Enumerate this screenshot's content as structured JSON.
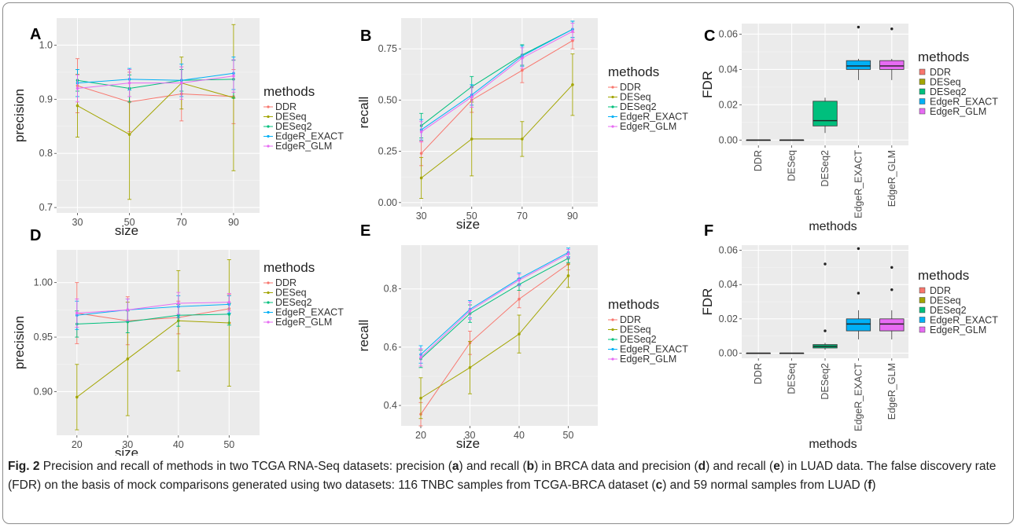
{
  "figure": {
    "caption_fig_label": "Fig. 2",
    "caption_parts": [
      " Precision and recall of methods in two TCGA RNA-Seq datasets: precision (",
      "a",
      ") and recall (",
      "b",
      ") in BRCA data and precision (",
      "d",
      ") and recall (",
      "e",
      ") in LUAD data. The false discovery rate (FDR) on the basis of mock comparisons generated using two datasets: 116 TNBC samples from TCGA-BRCA dataset (",
      "c",
      ") and 59 normal samples from LUAD (",
      "f",
      ")"
    ]
  },
  "colors": {
    "DDR": "#F8766D",
    "DESeq": "#A3A500",
    "DESeq2": "#00BF7D",
    "EdgeR_EXACT": "#00B0F6",
    "EdgeR_GLM": "#E76BF3",
    "panel_bg": "#EBEBEB",
    "grid": "#FFFFFF"
  },
  "chart_data": [
    {
      "panel": "A",
      "type": "line",
      "xlabel": "size",
      "ylabel": "precision",
      "x": [
        30,
        50,
        70,
        90
      ],
      "xlim": [
        22,
        100
      ],
      "ylim": [
        0.69,
        1.05
      ],
      "xticks": [
        "30",
        "50",
        "70",
        "90"
      ],
      "yticks": [
        0.7,
        0.8,
        0.9,
        1.0
      ],
      "ytick_labels": [
        "0.7",
        "0.8",
        "0.9",
        "1.0"
      ],
      "legend_title": "methods",
      "legend_position": "right",
      "series": [
        {
          "name": "DDR",
          "values": [
            0.925,
            0.895,
            0.91,
            0.905
          ],
          "err": [
            0.05,
            0.055,
            0.05,
            0.05
          ]
        },
        {
          "name": "DESeq",
          "values": [
            0.888,
            0.835,
            0.93,
            0.903
          ],
          "err": [
            0.058,
            0.12,
            0.048,
            0.135
          ]
        },
        {
          "name": "DESeq2",
          "values": [
            0.935,
            0.92,
            0.935,
            0.937
          ],
          "err": [
            0.02,
            0.025,
            0.02,
            0.035
          ]
        },
        {
          "name": "EdgeR_EXACT",
          "values": [
            0.93,
            0.937,
            0.935,
            0.948
          ],
          "err": [
            0.025,
            0.02,
            0.03,
            0.03
          ]
        },
        {
          "name": "EdgeR_GLM",
          "values": [
            0.92,
            0.93,
            0.93,
            0.943
          ],
          "err": [
            0.025,
            0.025,
            0.03,
            0.03
          ]
        }
      ]
    },
    {
      "panel": "B",
      "type": "line",
      "xlabel": "size",
      "ylabel": "recall",
      "x": [
        30,
        50,
        70,
        90
      ],
      "xlim": [
        22,
        100
      ],
      "ylim": [
        -0.02,
        0.9
      ],
      "xticks": [
        "30",
        "50",
        "70",
        "90"
      ],
      "yticks": [
        0,
        0.25,
        0.5,
        0.75
      ],
      "ytick_labels": [
        "0.00",
        "0.25",
        "0.50",
        "0.75"
      ],
      "legend_title": "methods",
      "legend_position": "right",
      "series": [
        {
          "name": "DDR",
          "values": [
            0.24,
            0.5,
            0.645,
            0.79
          ],
          "err": [
            0.06,
            0.06,
            0.06,
            0.04
          ]
        },
        {
          "name": "DESeq",
          "values": [
            0.12,
            0.31,
            0.31,
            0.575
          ],
          "err": [
            0.1,
            0.18,
            0.085,
            0.15
          ]
        },
        {
          "name": "DESeq2",
          "values": [
            0.375,
            0.565,
            0.72,
            0.845
          ],
          "err": [
            0.06,
            0.05,
            0.05,
            0.04
          ]
        },
        {
          "name": "EdgeR_EXACT",
          "values": [
            0.355,
            0.525,
            0.715,
            0.845
          ],
          "err": [
            0.05,
            0.05,
            0.05,
            0.04
          ]
        },
        {
          "name": "EdgeR_GLM",
          "values": [
            0.345,
            0.515,
            0.705,
            0.835
          ],
          "err": [
            0.05,
            0.05,
            0.05,
            0.04
          ]
        }
      ]
    },
    {
      "panel": "C",
      "type": "box",
      "xlabel": "methods",
      "ylabel": "FDR",
      "categories": [
        "DDR",
        "DESeq",
        "DESeq2",
        "EdgeR_EXACT",
        "EdgeR_GLM"
      ],
      "ylim": [
        -0.003,
        0.066
      ],
      "yticks": [
        0,
        0.02,
        0.04,
        0.06
      ],
      "ytick_labels": [
        "0.00",
        "0.02",
        "0.04",
        "0.06"
      ],
      "legend_title": "methods",
      "legend_position": "right",
      "boxes": [
        {
          "name": "DDR",
          "min": 0,
          "q1": 0,
          "median": 0,
          "q3": 0,
          "max": 0,
          "outliers": []
        },
        {
          "name": "DESeq",
          "min": 0,
          "q1": 0,
          "median": 0,
          "q3": 0,
          "max": 0,
          "outliers": []
        },
        {
          "name": "DESeq2",
          "min": 0.004,
          "q1": 0.008,
          "median": 0.011,
          "q3": 0.022,
          "max": 0.024,
          "outliers": []
        },
        {
          "name": "EdgeR_EXACT",
          "min": 0.034,
          "q1": 0.04,
          "median": 0.042,
          "q3": 0.045,
          "max": 0.046,
          "outliers": [
            0.064
          ]
        },
        {
          "name": "EdgeR_GLM",
          "min": 0.034,
          "q1": 0.04,
          "median": 0.042,
          "q3": 0.045,
          "max": 0.046,
          "outliers": [
            0.063
          ]
        }
      ]
    },
    {
      "panel": "D",
      "type": "line",
      "xlabel": "size",
      "ylabel": "precision",
      "x": [
        20,
        30,
        40,
        50
      ],
      "xlim": [
        16,
        56
      ],
      "ylim": [
        0.86,
        1.03
      ],
      "xticks": [
        "20",
        "30",
        "40",
        "50"
      ],
      "yticks": [
        0.9,
        0.95,
        1.0
      ],
      "ytick_labels": [
        "0.90",
        "0.95",
        "1.00"
      ],
      "legend_title": "methods",
      "legend_position": "right",
      "series": [
        {
          "name": "DDR",
          "values": [
            0.972,
            0.965,
            0.968,
            0.976
          ],
          "err": [
            0.028,
            0.022,
            0.015,
            0.013
          ]
        },
        {
          "name": "DESeq",
          "values": [
            0.895,
            0.93,
            0.965,
            0.963
          ],
          "err": [
            0.03,
            0.052,
            0.046,
            0.058
          ]
        },
        {
          "name": "DESeq2",
          "values": [
            0.962,
            0.964,
            0.97,
            0.971
          ],
          "err": [
            0.012,
            0.01,
            0.01,
            0.01
          ]
        },
        {
          "name": "EdgeR_EXACT",
          "values": [
            0.97,
            0.975,
            0.978,
            0.98
          ],
          "err": [
            0.013,
            0.01,
            0.01,
            0.008
          ]
        },
        {
          "name": "EdgeR_GLM",
          "values": [
            0.972,
            0.975,
            0.981,
            0.982
          ],
          "err": [
            0.013,
            0.01,
            0.01,
            0.008
          ]
        }
      ]
    },
    {
      "panel": "E",
      "type": "line",
      "xlabel": "size",
      "ylabel": "recall",
      "x": [
        20,
        30,
        40,
        50
      ],
      "xlim": [
        16,
        56
      ],
      "ylim": [
        0.33,
        0.95
      ],
      "xticks": [
        "20",
        "30",
        "40",
        "50"
      ],
      "yticks": [
        0.4,
        0.6,
        0.8
      ],
      "ytick_labels": [
        "0.4",
        "0.6",
        "0.8"
      ],
      "legend_title": "methods",
      "legend_position": "right",
      "series": [
        {
          "name": "DDR",
          "values": [
            0.37,
            0.615,
            0.765,
            0.885
          ],
          "err": [
            0.04,
            0.04,
            0.03,
            0.02
          ]
        },
        {
          "name": "DESeq",
          "values": [
            0.425,
            0.53,
            0.645,
            0.845
          ],
          "err": [
            0.07,
            0.09,
            0.065,
            0.04
          ]
        },
        {
          "name": "DESeq2",
          "values": [
            0.56,
            0.715,
            0.815,
            0.905
          ],
          "err": [
            0.03,
            0.03,
            0.02,
            0.015
          ]
        },
        {
          "name": "EdgeR_EXACT",
          "values": [
            0.575,
            0.73,
            0.835,
            0.925
          ],
          "err": [
            0.03,
            0.03,
            0.02,
            0.015
          ]
        },
        {
          "name": "EdgeR_GLM",
          "values": [
            0.565,
            0.725,
            0.83,
            0.92
          ],
          "err": [
            0.03,
            0.03,
            0.02,
            0.015
          ]
        }
      ]
    },
    {
      "panel": "F",
      "type": "box",
      "xlabel": "methods",
      "ylabel": "FDR",
      "categories": [
        "DDR",
        "DESeq",
        "DESeq2",
        "EdgeR_EXACT",
        "EdgeR_GLM"
      ],
      "ylim": [
        -0.003,
        0.063
      ],
      "yticks": [
        0,
        0.02,
        0.04,
        0.06
      ],
      "ytick_labels": [
        "0.00",
        "0.02",
        "0.04",
        "0.06"
      ],
      "legend_title": "methods",
      "legend_position": "right",
      "boxes": [
        {
          "name": "DDR",
          "min": 0,
          "q1": 0,
          "median": 0,
          "q3": 0,
          "max": 0,
          "outliers": []
        },
        {
          "name": "DESeq",
          "min": 0,
          "q1": 0,
          "median": 0,
          "q3": 0,
          "max": 0,
          "outliers": []
        },
        {
          "name": "DESeq2",
          "min": 0.002,
          "q1": 0.003,
          "median": 0.004,
          "q3": 0.005,
          "max": 0.006,
          "outliers": [
            0.013,
            0.052
          ]
        },
        {
          "name": "EdgeR_EXACT",
          "min": 0.008,
          "q1": 0.013,
          "median": 0.017,
          "q3": 0.02,
          "max": 0.025,
          "outliers": [
            0.035,
            0.061
          ]
        },
        {
          "name": "EdgeR_GLM",
          "min": 0.008,
          "q1": 0.013,
          "median": 0.017,
          "q3": 0.02,
          "max": 0.025,
          "outliers": [
            0.037,
            0.05
          ]
        }
      ]
    }
  ]
}
